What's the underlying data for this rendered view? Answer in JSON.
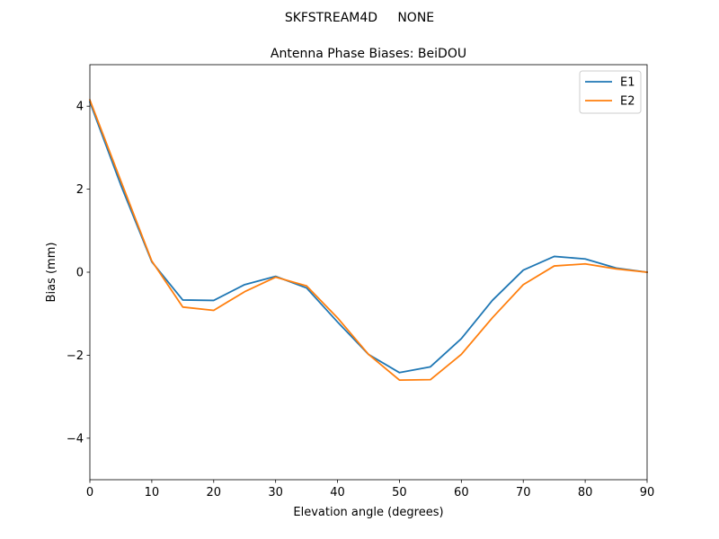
{
  "figure": {
    "suptitle": "SKFSTREAM4D     NONE"
  },
  "chart_data": {
    "type": "line",
    "title": "Antenna Phase Biases: BeiDOU",
    "xlabel": "Elevation angle (degrees)",
    "ylabel": "Bias (mm)",
    "xlim": [
      0,
      90
    ],
    "ylim": [
      -5,
      5
    ],
    "xticks": [
      0,
      10,
      20,
      30,
      40,
      50,
      60,
      70,
      80,
      90
    ],
    "xtick_labels": [
      "0",
      "10",
      "20",
      "30",
      "40",
      "50",
      "60",
      "70",
      "80",
      "90"
    ],
    "yticks": [
      -4,
      -2,
      0,
      2,
      4
    ],
    "ytick_labels": [
      "−4",
      "−2",
      "0",
      "2",
      "4"
    ],
    "grid": false,
    "legend_position": "top-right",
    "x": [
      0,
      5,
      10,
      15,
      20,
      25,
      30,
      35,
      40,
      45,
      50,
      55,
      60,
      65,
      70,
      75,
      80,
      85,
      90
    ],
    "series": [
      {
        "name": "E1",
        "color": "#1f77b4",
        "values": [
          4.1,
          2.1,
          0.25,
          -0.67,
          -0.68,
          -0.3,
          -0.1,
          -0.38,
          -1.2,
          -1.98,
          -2.42,
          -2.28,
          -1.6,
          -0.68,
          0.05,
          0.38,
          0.32,
          0.1,
          0.0
        ]
      },
      {
        "name": "E2",
        "color": "#ff7f0e",
        "values": [
          4.15,
          2.2,
          0.27,
          -0.84,
          -0.92,
          -0.47,
          -0.12,
          -0.33,
          -1.1,
          -1.98,
          -2.6,
          -2.59,
          -1.98,
          -1.1,
          -0.3,
          0.15,
          0.2,
          0.08,
          0.0
        ]
      }
    ]
  }
}
